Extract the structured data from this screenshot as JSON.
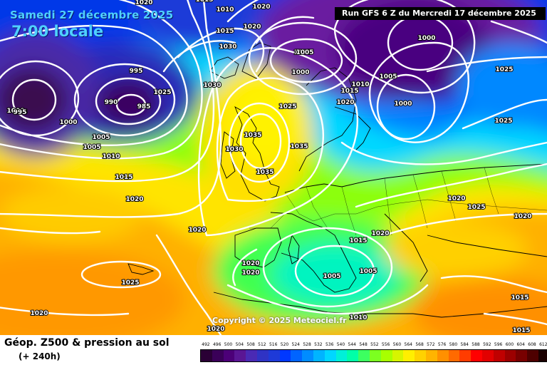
{
  "header": {
    "date": "Samedi 27 décembre 2025",
    "local_time": "7:00 locale",
    "run": "Run GFS 6 Z du Mercredi 17 décembre 2025"
  },
  "copyright": "Copyright © 2025 Meteociel.fr",
  "footer": {
    "title": "Géop. Z500 & pression au sol",
    "lead": "(+ 240h)"
  },
  "legend": {
    "values": [
      "492",
      "496",
      "500",
      "504",
      "508",
      "512",
      "516",
      "520",
      "524",
      "528",
      "532",
      "536",
      "540",
      "544",
      "548",
      "552",
      "556",
      "560",
      "564",
      "568",
      "572",
      "576",
      "580",
      "584",
      "588",
      "592",
      "596",
      "600",
      "604",
      "608",
      "612"
    ],
    "colors": [
      "#2a0035",
      "#3a0058",
      "#4c0078",
      "#5a1694",
      "#4a2ab4",
      "#2f33c4",
      "#1e3ad8",
      "#0038ff",
      "#0064ff",
      "#008cff",
      "#00b4ff",
      "#00d7ff",
      "#00f0d8",
      "#00ffa8",
      "#3cff60",
      "#7cff20",
      "#a8ff00",
      "#d6f500",
      "#ffef00",
      "#ffd200",
      "#ffb400",
      "#ff9000",
      "#ff6a00",
      "#ff3c00",
      "#ff0000",
      "#e20000",
      "#c00000",
      "#9c0000",
      "#780000",
      "#4e0000",
      "#1a0000"
    ]
  },
  "isobar_labels": [
    "1020",
    "1015",
    "1010",
    "1020",
    "1015",
    "1020",
    "1030",
    "1005",
    "1000",
    "995",
    "1000",
    "990",
    "985",
    "995",
    "1000",
    "1005",
    "1005",
    "1010",
    "1015",
    "1020",
    "1025",
    "1030",
    "1035",
    "1035",
    "1030",
    "1035",
    "1025",
    "1005",
    "1010",
    "1015",
    "1020",
    "1005",
    "1000",
    "1025",
    "1025",
    "1020",
    "1025",
    "1020",
    "1015",
    "1020",
    "1020",
    "1025",
    "1020",
    "1020",
    "1005",
    "1005",
    "1010",
    "1015",
    "1020",
    "1020",
    "1015",
    "1000",
    "995"
  ]
}
